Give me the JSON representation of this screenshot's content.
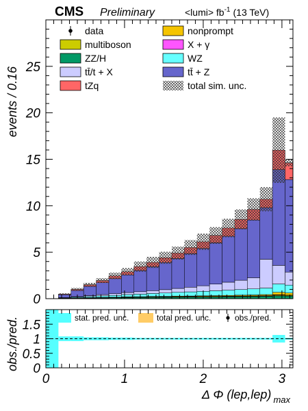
{
  "header": {
    "experiment": "CMS",
    "status": "Preliminary",
    "lumi_prefix": "<lumi> fb",
    "lumi_exp": "-1",
    "energy": "(13 TeV)"
  },
  "colors": {
    "nonprompt": "#f5c400",
    "multiboson": "#cccc00",
    "X + γ": "#ff55ff",
    "ZZ/H": "#009966",
    "WZ": "#66ffff",
    "tt̄/t + X": "#ccccff",
    "tt̄ + Z": "#6666cc",
    "tZq": "#ff6666",
    "stat_band": "#55ffff",
    "total_band": "#ffcc66"
  },
  "chart_data": [
    {
      "type": "bar",
      "stacked": true,
      "xlabel_main": "Δ Φ (lep,lep)",
      "xlabel_sub": "max",
      "ylabel": "events / 0.16",
      "xlim": [
        0,
        3.14
      ],
      "ylim": [
        0,
        30
      ],
      "yticks": [
        "0",
        "5",
        "10",
        "15",
        "20",
        "25"
      ],
      "xticks": [
        "0",
        "1",
        "2",
        "3"
      ],
      "bin_edges": [
        0.0,
        0.16,
        0.32,
        0.48,
        0.64,
        0.8,
        0.96,
        1.12,
        1.28,
        1.44,
        1.6,
        1.76,
        1.92,
        2.08,
        2.24,
        2.4,
        2.56,
        2.72,
        2.88,
        3.04,
        3.14
      ],
      "series": [
        {
          "name": "ZZ/H",
          "values": [
            0,
            0.02,
            0.04,
            0.06,
            0.08,
            0.1,
            0.12,
            0.13,
            0.14,
            0.15,
            0.16,
            0.17,
            0.18,
            0.19,
            0.2,
            0.21,
            0.22,
            0.24,
            0.3,
            0.28
          ]
        },
        {
          "name": "multiboson",
          "values": [
            0,
            0.01,
            0.01,
            0.02,
            0.02,
            0.02,
            0.03,
            0.03,
            0.03,
            0.03,
            0.04,
            0.04,
            0.04,
            0.04,
            0.05,
            0.05,
            0.05,
            0.05,
            0.08,
            0.07
          ]
        },
        {
          "name": "X + γ",
          "values": [
            0,
            0,
            0.01,
            0.01,
            0.01,
            0.01,
            0.01,
            0.01,
            0.02,
            0.02,
            0.02,
            0.02,
            0.02,
            0.02,
            0.02,
            0.03,
            0.03,
            0.03,
            0.05,
            0.04
          ]
        },
        {
          "name": "nonprompt",
          "values": [
            0,
            0.01,
            0.02,
            0.02,
            0.03,
            0.03,
            0.04,
            0.04,
            0.05,
            0.05,
            0.06,
            0.06,
            0.07,
            0.08,
            0.08,
            0.09,
            0.1,
            0.12,
            0.25,
            0.22
          ]
        },
        {
          "name": "WZ",
          "values": [
            0,
            0.04,
            0.08,
            0.12,
            0.16,
            0.2,
            0.24,
            0.28,
            0.32,
            0.36,
            0.4,
            0.44,
            0.48,
            0.52,
            0.56,
            0.6,
            0.65,
            0.7,
            0.9,
            0.85
          ]
        },
        {
          "name": "tt̄/t + X",
          "values": [
            0,
            0.03,
            0.06,
            0.1,
            0.14,
            0.18,
            0.22,
            0.26,
            0.3,
            0.36,
            0.42,
            0.5,
            0.6,
            0.72,
            0.86,
            1.0,
            1.2,
            3.1,
            2.0,
            1.4
          ]
        },
        {
          "name": "tt̄ + Z",
          "values": [
            0,
            0.32,
            0.66,
            0.99,
            1.28,
            1.62,
            1.9,
            2.28,
            2.58,
            2.92,
            3.22,
            3.62,
            4.02,
            4.45,
            4.95,
            5.55,
            6.22,
            5.56,
            10.3,
            9.96
          ]
        },
        {
          "name": "tZq",
          "values": [
            0,
            0.06,
            0.12,
            0.18,
            0.23,
            0.29,
            0.34,
            0.42,
            0.46,
            0.51,
            0.58,
            0.65,
            0.71,
            0.78,
            0.88,
            1.0,
            1.13,
            0.9,
            2.1,
            1.8
          ]
        }
      ],
      "total_unc_upper": [
        0,
        0.58,
        1.15,
        1.7,
        2.2,
        2.8,
        3.3,
        4.0,
        4.5,
        5.05,
        5.6,
        6.3,
        7.0,
        7.7,
        8.6,
        9.6,
        10.8,
        12.0,
        19.5,
        15.0
      ],
      "legend": [
        {
          "label": "data",
          "kind": "marker"
        },
        {
          "label": "nonprompt",
          "kind": "fill",
          "color_key": "nonprompt"
        },
        {
          "label": "multiboson",
          "kind": "fill",
          "color_key": "multiboson"
        },
        {
          "label": "X + γ",
          "kind": "fill",
          "color_key": "X + γ"
        },
        {
          "label": "ZZ/H",
          "kind": "fill",
          "color_key": "ZZ/H"
        },
        {
          "label": "WZ",
          "kind": "fill",
          "color_key": "WZ"
        },
        {
          "label": "tt̄/t + X",
          "kind": "fill",
          "color_key": "tt̄/t + X"
        },
        {
          "label": "tt̄ + Z",
          "kind": "fill",
          "color_key": "tt̄ + Z"
        },
        {
          "label": "tZq",
          "kind": "fill",
          "color_key": "tZq"
        },
        {
          "label": "total sim. unc.",
          "kind": "hatch"
        }
      ]
    },
    {
      "type": "ratio",
      "ylabel": "obs./pred.",
      "ylim": [
        0,
        2
      ],
      "yticks": [
        "0",
        "0.5",
        "1",
        "1.5"
      ],
      "xticks": [
        "0",
        "1",
        "2",
        "3"
      ],
      "stat_unc_half_width": [
        1.0,
        0.08,
        0.08,
        0.05,
        0.05,
        0.04,
        0.04,
        0.03,
        0.03,
        0.03,
        0.03,
        0.03,
        0.03,
        0.03,
        0.03,
        0.03,
        0.03,
        0.03,
        0.13,
        0.03
      ],
      "legend": [
        {
          "label": "stat. pred. unc.",
          "color_key": "stat_band"
        },
        {
          "label": "total pred. unc.",
          "color_key": "total_band"
        },
        {
          "label": "obs./pred.",
          "kind": "marker"
        }
      ]
    }
  ]
}
